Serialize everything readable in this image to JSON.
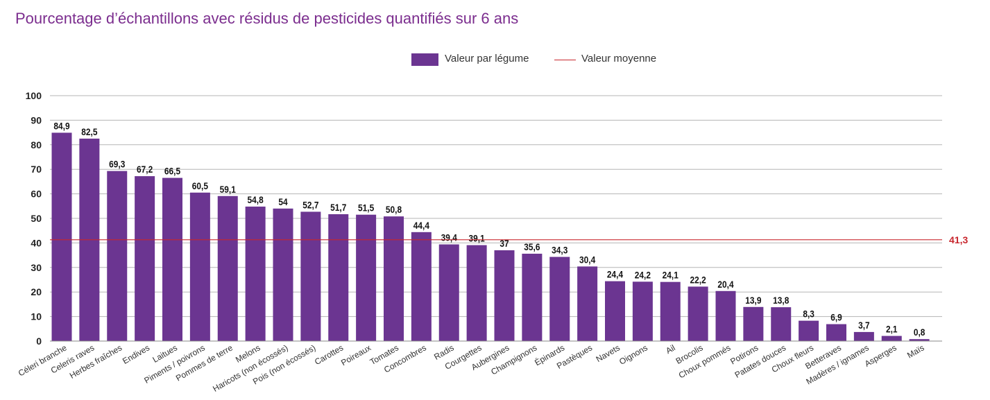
{
  "title": "Pourcentage d’échantillons avec résidus de pesticides quantifiés sur 6 ans",
  "legend": {
    "bar_label": "Valeur par légume",
    "line_label": "Valeur moyenne"
  },
  "colors": {
    "bar": "#6b3591",
    "average_line": "#c8262d",
    "title": "#7b2d8e",
    "grid": "#b5b5b5"
  },
  "chart_data": {
    "type": "bar",
    "title": "Pourcentage d’échantillons avec résidus de pesticides quantifiés sur 6 ans",
    "xlabel": "",
    "ylabel": "",
    "ylim": [
      0,
      100
    ],
    "yticks": [
      0,
      10,
      20,
      30,
      40,
      50,
      60,
      70,
      80,
      90,
      100
    ],
    "grid": true,
    "legend_position": "top-center",
    "categories": [
      "Céleri branche",
      "Celeris raves",
      "Herbes fraîches",
      "Endives",
      "Laitues",
      "Piments / poivrons",
      "Pommes de terre",
      "Melons",
      "Haricots (non écossés)",
      "Pois (non écossés)",
      "Carottes",
      "Poireaux",
      "Tomates",
      "Concombres",
      "Radis",
      "Courgettes",
      "Aubergines",
      "Champignons",
      "Épinards",
      "Pastèques",
      "Navets",
      "Oignons",
      "Ail",
      "Brocolis",
      "Choux pommés",
      "Potirons",
      "Patates douces",
      "Choux fleurs",
      "Betteraves",
      "Madères / ignames",
      "Asperges",
      "Maïs"
    ],
    "series": [
      {
        "name": "Valeur par légume",
        "values": [
          84.9,
          82.5,
          69.3,
          67.2,
          66.5,
          60.5,
          59.1,
          54.8,
          54,
          52.7,
          51.7,
          51.5,
          50.8,
          44.4,
          39.4,
          39.1,
          37,
          35.6,
          34.3,
          30.4,
          24.4,
          24.2,
          24.1,
          22.2,
          20.4,
          13.9,
          13.8,
          8.3,
          6.9,
          3.7,
          2.1,
          0.8
        ],
        "labels": [
          "84,9",
          "82,5",
          "69,3",
          "67,2",
          "66,5",
          "60,5",
          "59,1",
          "54,8",
          "54",
          "52,7",
          "51,7",
          "51,5",
          "50,8",
          "44,4",
          "39,4",
          "39,1",
          "37",
          "35,6",
          "34,3",
          "30,4",
          "24,4",
          "24,2",
          "24,1",
          "22,2",
          "20,4",
          "13,9",
          "13,8",
          "8,3",
          "6,9",
          "3,7",
          "2,1",
          "0,8"
        ]
      }
    ],
    "average": {
      "name": "Valeur moyenne",
      "value": 41.3,
      "label": "41,3"
    }
  }
}
